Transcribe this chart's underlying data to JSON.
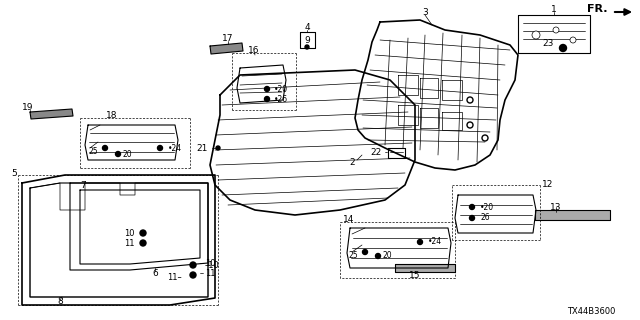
{
  "bg_color": "#ffffff",
  "diagram_code": "TX44B3600",
  "figsize": [
    6.4,
    3.2
  ],
  "dpi": 100,
  "lw_thin": 0.5,
  "lw_med": 0.8,
  "lw_thick": 1.2
}
